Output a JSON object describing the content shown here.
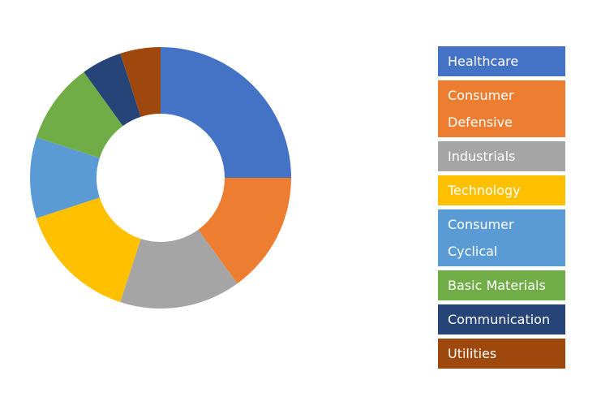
{
  "chart_data": {
    "type": "donut",
    "categories": [
      "Healthcare",
      "Consumer Defensive",
      "Industrials",
      "Technology",
      "Consumer Cyclical",
      "Basic Materials",
      "Communication",
      "Utilities"
    ],
    "values": [
      25,
      15,
      15,
      15,
      10,
      10,
      5,
      5
    ],
    "colors": [
      "#4472c4",
      "#ed7d31",
      "#a5a5a5",
      "#ffc000",
      "#5b9bd5",
      "#70ad47",
      "#264478",
      "#9e480e"
    ],
    "legend": "right"
  }
}
